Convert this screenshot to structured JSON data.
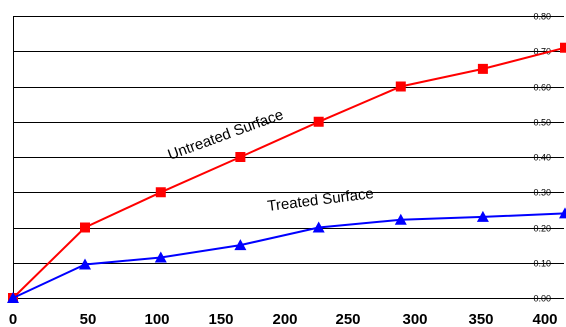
{
  "chart_data": {
    "type": "line",
    "title": "",
    "xlabel": "",
    "ylabel": "",
    "x_ticks": [
      "0",
      "50",
      "100",
      "150",
      "200",
      "250",
      "300",
      "350",
      "400"
    ],
    "y_ticks": [
      "0.00",
      "0.10",
      "0.20",
      "0.30",
      "0.40",
      "0.50",
      "0.60",
      "0.70",
      "0.80"
    ],
    "xlim": [
      0,
      420
    ],
    "ylim": [
      0,
      0.8
    ],
    "grid": "horizontal",
    "y_axis_side": "right",
    "series": [
      {
        "name": "Untreated Surface",
        "color": "#ff0000",
        "marker": "square",
        "x": [
          0,
          57,
          117,
          180,
          242,
          307,
          372,
          437
        ],
        "y": [
          0.0,
          0.2,
          0.3,
          0.4,
          0.5,
          0.6,
          0.65,
          0.71
        ]
      },
      {
        "name": "Treated Surface",
        "color": "#0000ff",
        "marker": "triangle",
        "x": [
          0,
          57,
          117,
          180,
          242,
          307,
          372,
          437
        ],
        "y": [
          0.0,
          0.095,
          0.115,
          0.15,
          0.2,
          0.222,
          0.23,
          0.24
        ]
      }
    ]
  }
}
